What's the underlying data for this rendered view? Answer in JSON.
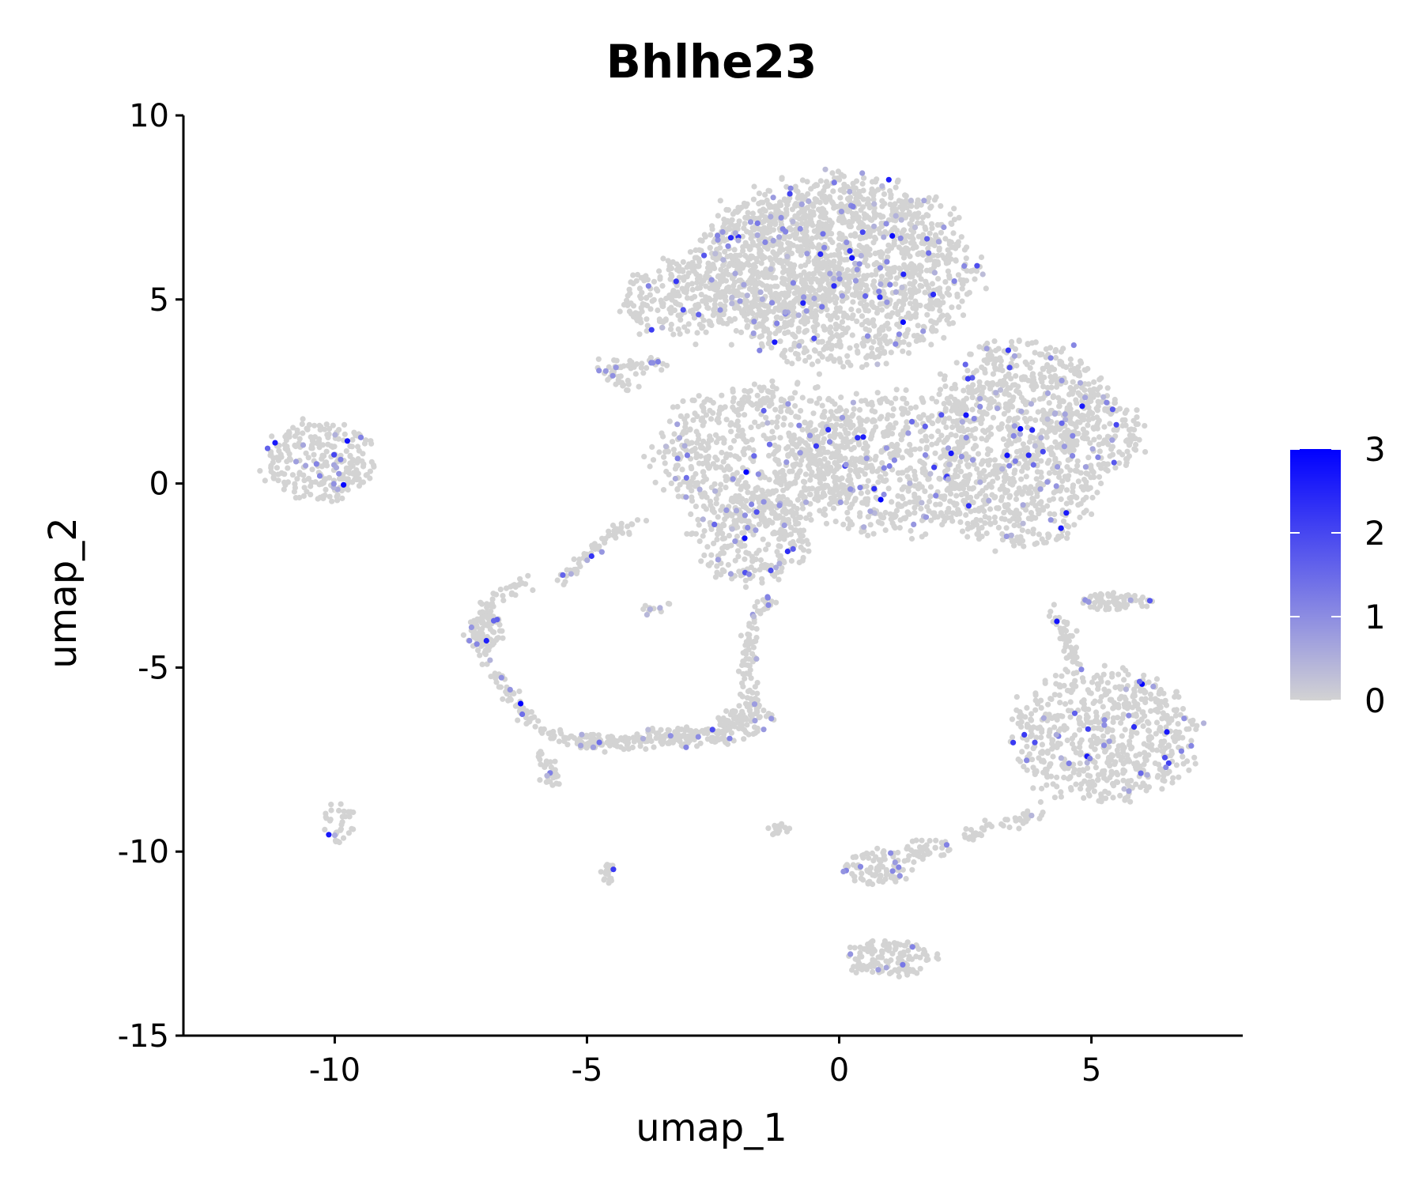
{
  "chart_data": {
    "type": "scatter",
    "title": "Bhlhe23",
    "xlabel": "umap_1",
    "ylabel": "umap_2",
    "xlim": [
      -13,
      8
    ],
    "ylim": [
      -15,
      10
    ],
    "x_ticks": [
      -10,
      -5,
      0,
      5
    ],
    "y_ticks": [
      10,
      5,
      0,
      -5,
      -10,
      -15
    ],
    "x_tick_labels": [
      "-10",
      "-5",
      "0",
      "5"
    ],
    "y_tick_labels": [
      "10",
      "5",
      "0",
      "-5",
      "-10",
      "-15"
    ],
    "grid": false,
    "legend": {
      "title": "",
      "placement": "right",
      "type": "colorbar",
      "range": [
        0,
        3
      ],
      "ticks": [
        3,
        2,
        1,
        0
      ],
      "tick_labels": [
        "3",
        "2",
        "1",
        "0"
      ],
      "colors": [
        "#d3d3d3",
        "#0000ff"
      ]
    },
    "clusters": [
      {
        "cx": 0.0,
        "cy": 5.8,
        "rx": 2.6,
        "ry": 2.5,
        "n": 1600
      },
      {
        "cx": -3.2,
        "cy": 5.0,
        "rx": 1.1,
        "ry": 1.1,
        "n": 230
      },
      {
        "cx": -1.3,
        "cy": 6.0,
        "rx": 1.6,
        "ry": 1.7,
        "n": 350
      },
      {
        "cx": -1.5,
        "cy": 0.8,
        "rx": 2.1,
        "ry": 1.9,
        "n": 700
      },
      {
        "cx": -1.7,
        "cy": -1.5,
        "rx": 1.2,
        "ry": 1.2,
        "n": 260
      },
      {
        "cx": 1.0,
        "cy": 0.5,
        "rx": 1.9,
        "ry": 1.9,
        "n": 600
      },
      {
        "cx": 3.6,
        "cy": 2.3,
        "rx": 1.6,
        "ry": 1.6,
        "n": 500
      },
      {
        "cx": 5.0,
        "cy": 1.4,
        "rx": 1.1,
        "ry": 1.2,
        "n": 220
      },
      {
        "cx": 3.5,
        "cy": -0.4,
        "rx": 1.6,
        "ry": 1.3,
        "n": 380
      },
      {
        "cx": 5.2,
        "cy": -6.8,
        "rx": 1.8,
        "ry": 1.8,
        "n": 650
      },
      {
        "cx": -10.3,
        "cy": 0.6,
        "rx": 1.1,
        "ry": 1.1,
        "n": 260
      },
      {
        "cx": -4.8,
        "cy": -7.0,
        "rx": 0.6,
        "ry": 0.2,
        "n": 40
      },
      {
        "cx": -3.0,
        "cy": -6.9,
        "rx": 1.1,
        "ry": 0.25,
        "n": 90
      },
      {
        "cx": -1.8,
        "cy": -6.4,
        "rx": 0.6,
        "ry": 0.4,
        "n": 60
      },
      {
        "cx": -7.0,
        "cy": -4.0,
        "rx": 0.35,
        "ry": 0.5,
        "n": 60
      },
      {
        "cx": 0.8,
        "cy": -10.4,
        "rx": 0.7,
        "ry": 0.5,
        "n": 90
      },
      {
        "cx": 1.0,
        "cy": -12.9,
        "rx": 0.9,
        "ry": 0.5,
        "n": 130
      },
      {
        "cx": 5.5,
        "cy": -3.2,
        "rx": 0.7,
        "ry": 0.25,
        "n": 70
      },
      {
        "cx": -9.9,
        "cy": -9.2,
        "rx": 0.3,
        "ry": 0.6,
        "n": 35
      },
      {
        "cx": 1.8,
        "cy": -9.9,
        "rx": 0.5,
        "ry": 0.3,
        "n": 40
      },
      {
        "cx": -4.6,
        "cy": -10.6,
        "rx": 0.15,
        "ry": 0.4,
        "n": 18
      },
      {
        "cx": -1.2,
        "cy": -9.4,
        "rx": 0.25,
        "ry": 0.15,
        "n": 15
      }
    ],
    "trajectories": [
      [
        [
          -6.2,
          -2.7
        ],
        [
          -6.8,
          -3.1
        ],
        [
          -7.2,
          -4.0
        ],
        [
          -6.9,
          -5.1
        ],
        [
          -6.5,
          -5.8
        ],
        [
          -6.0,
          -6.6
        ],
        [
          -5.3,
          -7.0
        ],
        [
          -4.5,
          -7.1
        ],
        [
          -3.5,
          -7.0
        ],
        [
          -2.5,
          -6.8
        ],
        [
          -1.8,
          -6.3
        ]
      ],
      [
        [
          -5.5,
          -2.6
        ],
        [
          -4.7,
          -1.6
        ],
        [
          -4.0,
          -1.0
        ]
      ],
      [
        [
          -5.6,
          -8.3
        ],
        [
          -5.8,
          -7.7
        ],
        [
          -6.0,
          -7.3
        ]
      ],
      [
        [
          -1.7,
          -6.3
        ],
        [
          -1.8,
          -5.0
        ],
        [
          -1.7,
          -3.8
        ],
        [
          -1.4,
          -3.0
        ]
      ],
      [
        [
          4.2,
          -3.4
        ],
        [
          4.5,
          -4.2
        ],
        [
          4.8,
          -5.0
        ]
      ],
      [
        [
          2.5,
          -9.6
        ],
        [
          3.3,
          -9.2
        ],
        [
          4.0,
          -8.9
        ]
      ],
      [
        [
          -3.4,
          3.3
        ],
        [
          -4.0,
          3.2
        ],
        [
          -4.7,
          3.2
        ],
        [
          -4.2,
          2.6
        ]
      ],
      [
        [
          -3.4,
          -3.3
        ],
        [
          -3.8,
          -3.4
        ]
      ]
    ]
  }
}
